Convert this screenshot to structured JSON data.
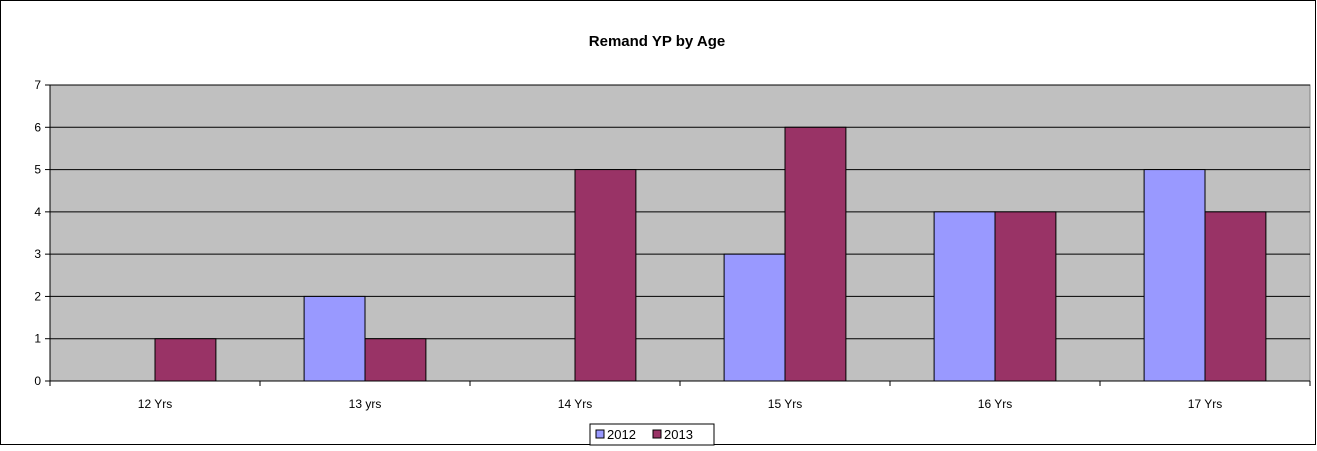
{
  "chart_data": {
    "type": "bar",
    "title": "Remand YP by Age",
    "categories": [
      "12 Yrs",
      "13 yrs",
      "14 Yrs",
      "15 Yrs",
      "16 Yrs",
      "17 Yrs"
    ],
    "series": [
      {
        "name": "2012",
        "values": [
          0,
          2,
          0,
          3,
          4,
          5
        ],
        "color": "#9999ff"
      },
      {
        "name": "2013",
        "values": [
          1,
          1,
          5,
          6,
          4,
          4
        ],
        "color": "#993366"
      }
    ],
    "ylim": [
      0,
      7
    ],
    "yticks": [
      0,
      1,
      2,
      3,
      4,
      5,
      6,
      7
    ],
    "grid": true,
    "legend": "bottom",
    "plot_background": "#c0c0c0"
  }
}
